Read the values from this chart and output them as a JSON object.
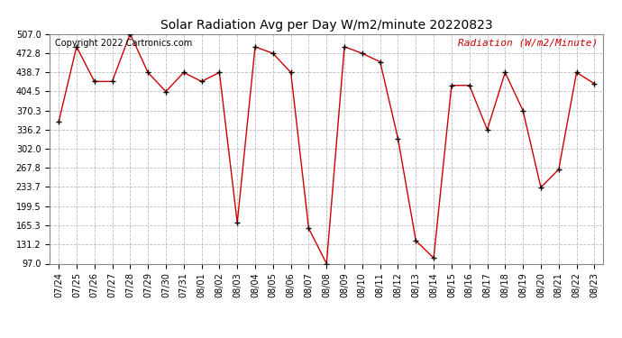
{
  "title": "Solar Radiation Avg per Day W/m2/minute 20220823",
  "copyright_text": "Copyright 2022 Cartronics.com",
  "legend_label": "Radiation (W/m2/Minute)",
  "dates": [
    "07/24",
    "07/25",
    "07/26",
    "07/27",
    "07/28",
    "07/29",
    "07/30",
    "07/31",
    "08/01",
    "08/02",
    "08/03",
    "08/04",
    "08/05",
    "08/06",
    "08/07",
    "08/08",
    "08/09",
    "08/10",
    "08/11",
    "08/12",
    "08/13",
    "08/14",
    "08/15",
    "08/16",
    "08/17",
    "08/18",
    "08/19",
    "08/20",
    "08/21",
    "08/22",
    "08/23"
  ],
  "values": [
    350,
    484,
    422,
    422,
    507,
    438,
    404,
    438,
    422,
    438,
    170,
    484,
    472,
    438,
    160,
    97,
    484,
    472,
    457,
    320,
    138,
    107,
    415,
    415,
    336,
    438,
    370,
    233,
    265,
    438,
    418
  ],
  "ylim": [
    97.0,
    507.0
  ],
  "yticks": [
    97.0,
    131.2,
    165.3,
    199.5,
    233.7,
    267.8,
    302.0,
    336.2,
    370.3,
    404.5,
    438.7,
    472.8,
    507.0
  ],
  "line_color": "#cc0000",
  "marker_color": "#000000",
  "grid_color": "#bbbbbb",
  "bg_color": "#ffffff",
  "title_fontsize": 10,
  "copyright_fontsize": 7,
  "legend_fontsize": 8,
  "tick_fontsize": 7
}
